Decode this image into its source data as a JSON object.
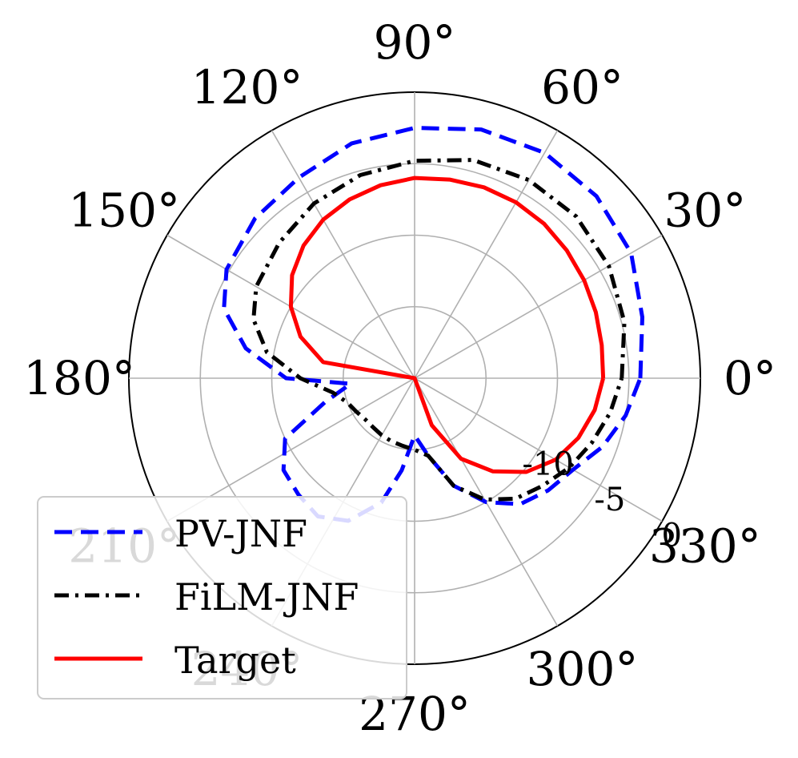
{
  "chart_data": {
    "type": "line",
    "projection": "polar",
    "title": "",
    "angle_unit": "degrees",
    "angle_ticks": [
      0,
      30,
      60,
      90,
      120,
      150,
      180,
      210,
      240,
      270,
      300,
      330
    ],
    "angle_tick_labels": [
      "0°",
      "30°",
      "60°",
      "90°",
      "120°",
      "150°",
      "180°",
      "210°",
      "240°",
      "270°",
      "300°",
      "330°"
    ],
    "radial_range": [
      -20,
      0
    ],
    "radial_ticks": [
      -15,
      -10,
      -5,
      0
    ],
    "radial_tick_labels": [
      "",
      "-10",
      "-5",
      "0"
    ],
    "radial_label_angle": 330,
    "grid": true,
    "legend_position": "lower-left",
    "series": [
      {
        "name": "PV-JNF",
        "color": "#0000ff",
        "style": "dashed",
        "angles": [
          0,
          15,
          30,
          45,
          60,
          75,
          90,
          105,
          120,
          135,
          150,
          160,
          170,
          180,
          185,
          195,
          205,
          215,
          225,
          235,
          245,
          255,
          262,
          270,
          280,
          290,
          300,
          310,
          320,
          330,
          340,
          350,
          360
        ],
        "values": [
          -4.2,
          -3.5,
          -2.5,
          -2.0,
          -1.8,
          -2.0,
          -2.5,
          -3.0,
          -3.8,
          -4.2,
          -4.8,
          -5.8,
          -8.0,
          -11.0,
          -15.5,
          -13.5,
          -10.0,
          -8.8,
          -8.5,
          -8.2,
          -9.0,
          -11.0,
          -13.5,
          -16.0,
          -14.5,
          -12.0,
          -10.0,
          -8.5,
          -7.8,
          -7.2,
          -6.0,
          -5.0,
          -4.2
        ]
      },
      {
        "name": "FiLM-JNF",
        "color": "#000000",
        "style": "dashdot",
        "angles": [
          0,
          15,
          30,
          45,
          60,
          75,
          90,
          105,
          120,
          135,
          150,
          160,
          170,
          180,
          190,
          200,
          210,
          220,
          230,
          240,
          250,
          260,
          270,
          280,
          290,
          300,
          310,
          320,
          330,
          340,
          350,
          360
        ],
        "values": [
          -5.5,
          -4.8,
          -4.3,
          -4.0,
          -4.0,
          -4.2,
          -4.8,
          -5.3,
          -5.9,
          -6.6,
          -7.2,
          -8.0,
          -9.5,
          -12.0,
          -14.2,
          -15.0,
          -15.3,
          -15.5,
          -15.5,
          -15.4,
          -15.3,
          -15.2,
          -15.0,
          -14.5,
          -12.0,
          -10.2,
          -9.0,
          -8.3,
          -7.5,
          -6.8,
          -6.1,
          -5.5
        ]
      },
      {
        "name": "Target",
        "color": "#ff0000",
        "style": "solid",
        "angles": [
          0,
          10,
          20,
          30,
          40,
          50,
          60,
          70,
          80,
          90,
          100,
          110,
          120,
          130,
          140,
          150,
          160,
          170,
          180,
          190,
          200,
          210,
          220,
          230,
          240,
          250,
          260,
          270,
          280,
          290,
          300,
          310,
          320,
          330,
          340,
          350,
          360
        ],
        "values": [
          -6.8,
          -6.7,
          -6.5,
          -6.3,
          -6.1,
          -5.9,
          -5.8,
          -5.8,
          -5.9,
          -6.0,
          -6.3,
          -6.7,
          -7.2,
          -7.9,
          -8.8,
          -10.0,
          -11.5,
          -13.5,
          -20,
          -20,
          -20,
          -20,
          -20,
          -20,
          -20,
          -20,
          -20,
          -20,
          -20,
          -16.5,
          -13.5,
          -11.5,
          -9.8,
          -8.6,
          -7.8,
          -7.2,
          -6.8
        ]
      }
    ]
  }
}
